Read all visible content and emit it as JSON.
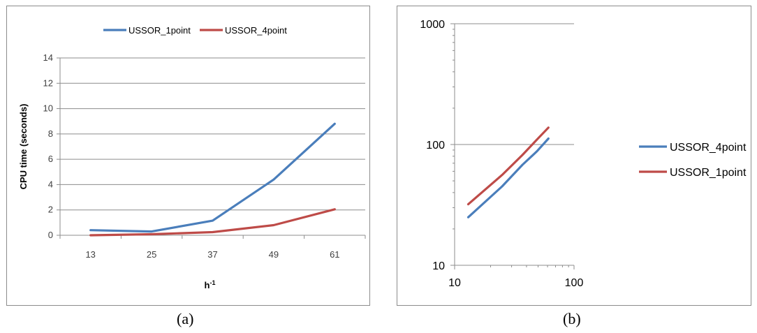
{
  "chart_data": [
    {
      "type": "line",
      "panel": "a",
      "categories": [
        "13",
        "25",
        "37",
        "49",
        "61"
      ],
      "series": [
        {
          "name": "USSOR_1point",
          "color": "#4a7ebb",
          "values": [
            0.4,
            0.3,
            1.15,
            4.4,
            8.8
          ]
        },
        {
          "name": "USSOR_4point",
          "color": "#be4b48",
          "values": [
            0.0,
            0.08,
            0.25,
            0.8,
            2.05
          ]
        }
      ],
      "xlabel_base": "h",
      "xlabel_sup": "-1",
      "ylabel": "CPU time (seconds)",
      "ylim": [
        0,
        14
      ],
      "yticks": [
        0,
        2,
        4,
        6,
        8,
        10,
        12,
        14
      ],
      "grid": true,
      "legend": "top"
    },
    {
      "type": "line",
      "panel": "b",
      "x_scale": "log",
      "y_scale": "log",
      "xlim": [
        10,
        100
      ],
      "ylim": [
        10,
        1000
      ],
      "xticks": [
        "10",
        "100"
      ],
      "yticks": [
        "10",
        "100",
        "1000"
      ],
      "series": [
        {
          "name": "USSOR_4point",
          "color": "#4a7ebb",
          "x": [
            13,
            25,
            37,
            49,
            61
          ],
          "y": [
            25,
            45,
            68,
            88,
            112
          ]
        },
        {
          "name": "USSOR_1point",
          "color": "#be4b48",
          "x": [
            13,
            25,
            37,
            49,
            61
          ],
          "y": [
            32,
            56,
            82,
            110,
            138
          ]
        }
      ],
      "grid": true,
      "legend": "right"
    }
  ],
  "captions": {
    "a": "(a)",
    "b": "(b)"
  }
}
